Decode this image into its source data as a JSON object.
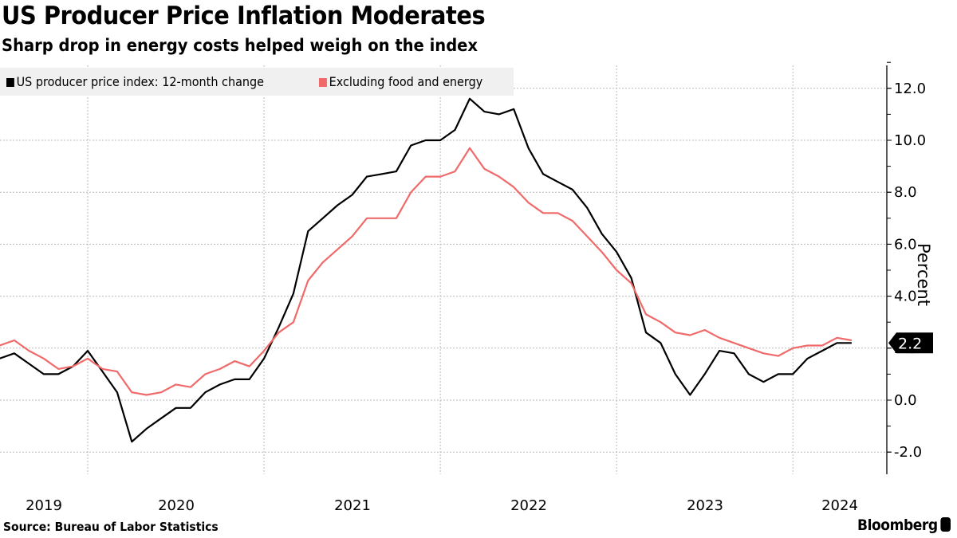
{
  "header": {
    "title": "US Producer Price Inflation Moderates",
    "subtitle": "Sharp drop in energy costs helped weigh on the index"
  },
  "footer": {
    "source": "Source: Bureau of Labor Statistics",
    "brand": "Bloomberg"
  },
  "colors": {
    "ppi": "#000000",
    "core": "#f06a6a",
    "legend_bg": "#f0f0f0"
  },
  "chart_data": {
    "type": "line",
    "title": "US Producer Price Inflation Moderates",
    "subtitle": "Sharp drop in energy costs helped weigh on the index",
    "xlabel": "",
    "ylabel": "Percent",
    "ylim": [
      -2.7,
      13.0
    ],
    "yticks": [
      "12.0",
      "10.0",
      "8.0",
      "6.0",
      "4.0",
      "2.0",
      "0.0",
      "-2.0"
    ],
    "ytick_values": [
      12,
      10,
      8,
      6,
      4,
      2,
      0,
      -2
    ],
    "xtick_labels": [
      "2019",
      "2020",
      "2021",
      "2022",
      "2023",
      "2024"
    ],
    "x_start": "2019-06",
    "x_end": "2024-06",
    "frequency": "monthly",
    "grid": true,
    "legend_position": "top-left",
    "y_axis_side": "right",
    "last_value_label": "2.2",
    "series": [
      {
        "name": "US producer price index: 12-month change",
        "color": "#000000",
        "values": [
          1.6,
          1.6,
          1.8,
          1.4,
          1.0,
          1.0,
          1.3,
          1.9,
          1.1,
          0.3,
          -1.6,
          -1.1,
          -0.7,
          -0.3,
          -0.3,
          0.3,
          0.6,
          0.8,
          0.8,
          1.6,
          2.8,
          4.1,
          6.5,
          7.0,
          7.5,
          7.9,
          8.6,
          8.7,
          8.8,
          9.8,
          10.0,
          10.0,
          10.4,
          11.6,
          11.1,
          11.0,
          11.2,
          9.7,
          8.7,
          8.4,
          8.1,
          7.4,
          6.4,
          5.7,
          4.7,
          2.6,
          2.2,
          1.0,
          0.2,
          1.0,
          1.9,
          1.8,
          1.0,
          0.7,
          1.0,
          1.0,
          1.6,
          1.9,
          2.2,
          2.2
        ]
      },
      {
        "name": "Excluding food and energy",
        "color": "#f06a6a",
        "values": [
          2.1,
          2.1,
          2.3,
          1.9,
          1.6,
          1.2,
          1.3,
          1.6,
          1.2,
          1.1,
          0.3,
          0.2,
          0.3,
          0.6,
          0.5,
          1.0,
          1.2,
          1.5,
          1.3,
          1.9,
          2.6,
          3.0,
          4.6,
          5.3,
          5.8,
          6.3,
          7.0,
          7.0,
          7.0,
          8.0,
          8.6,
          8.6,
          8.8,
          9.7,
          8.9,
          8.6,
          8.2,
          7.6,
          7.2,
          7.2,
          6.9,
          6.3,
          5.7,
          5.0,
          4.5,
          3.3,
          3.0,
          2.6,
          2.5,
          2.7,
          2.4,
          2.2,
          2.0,
          1.8,
          1.7,
          2.0,
          2.1,
          2.1,
          2.4,
          2.3
        ]
      }
    ]
  }
}
